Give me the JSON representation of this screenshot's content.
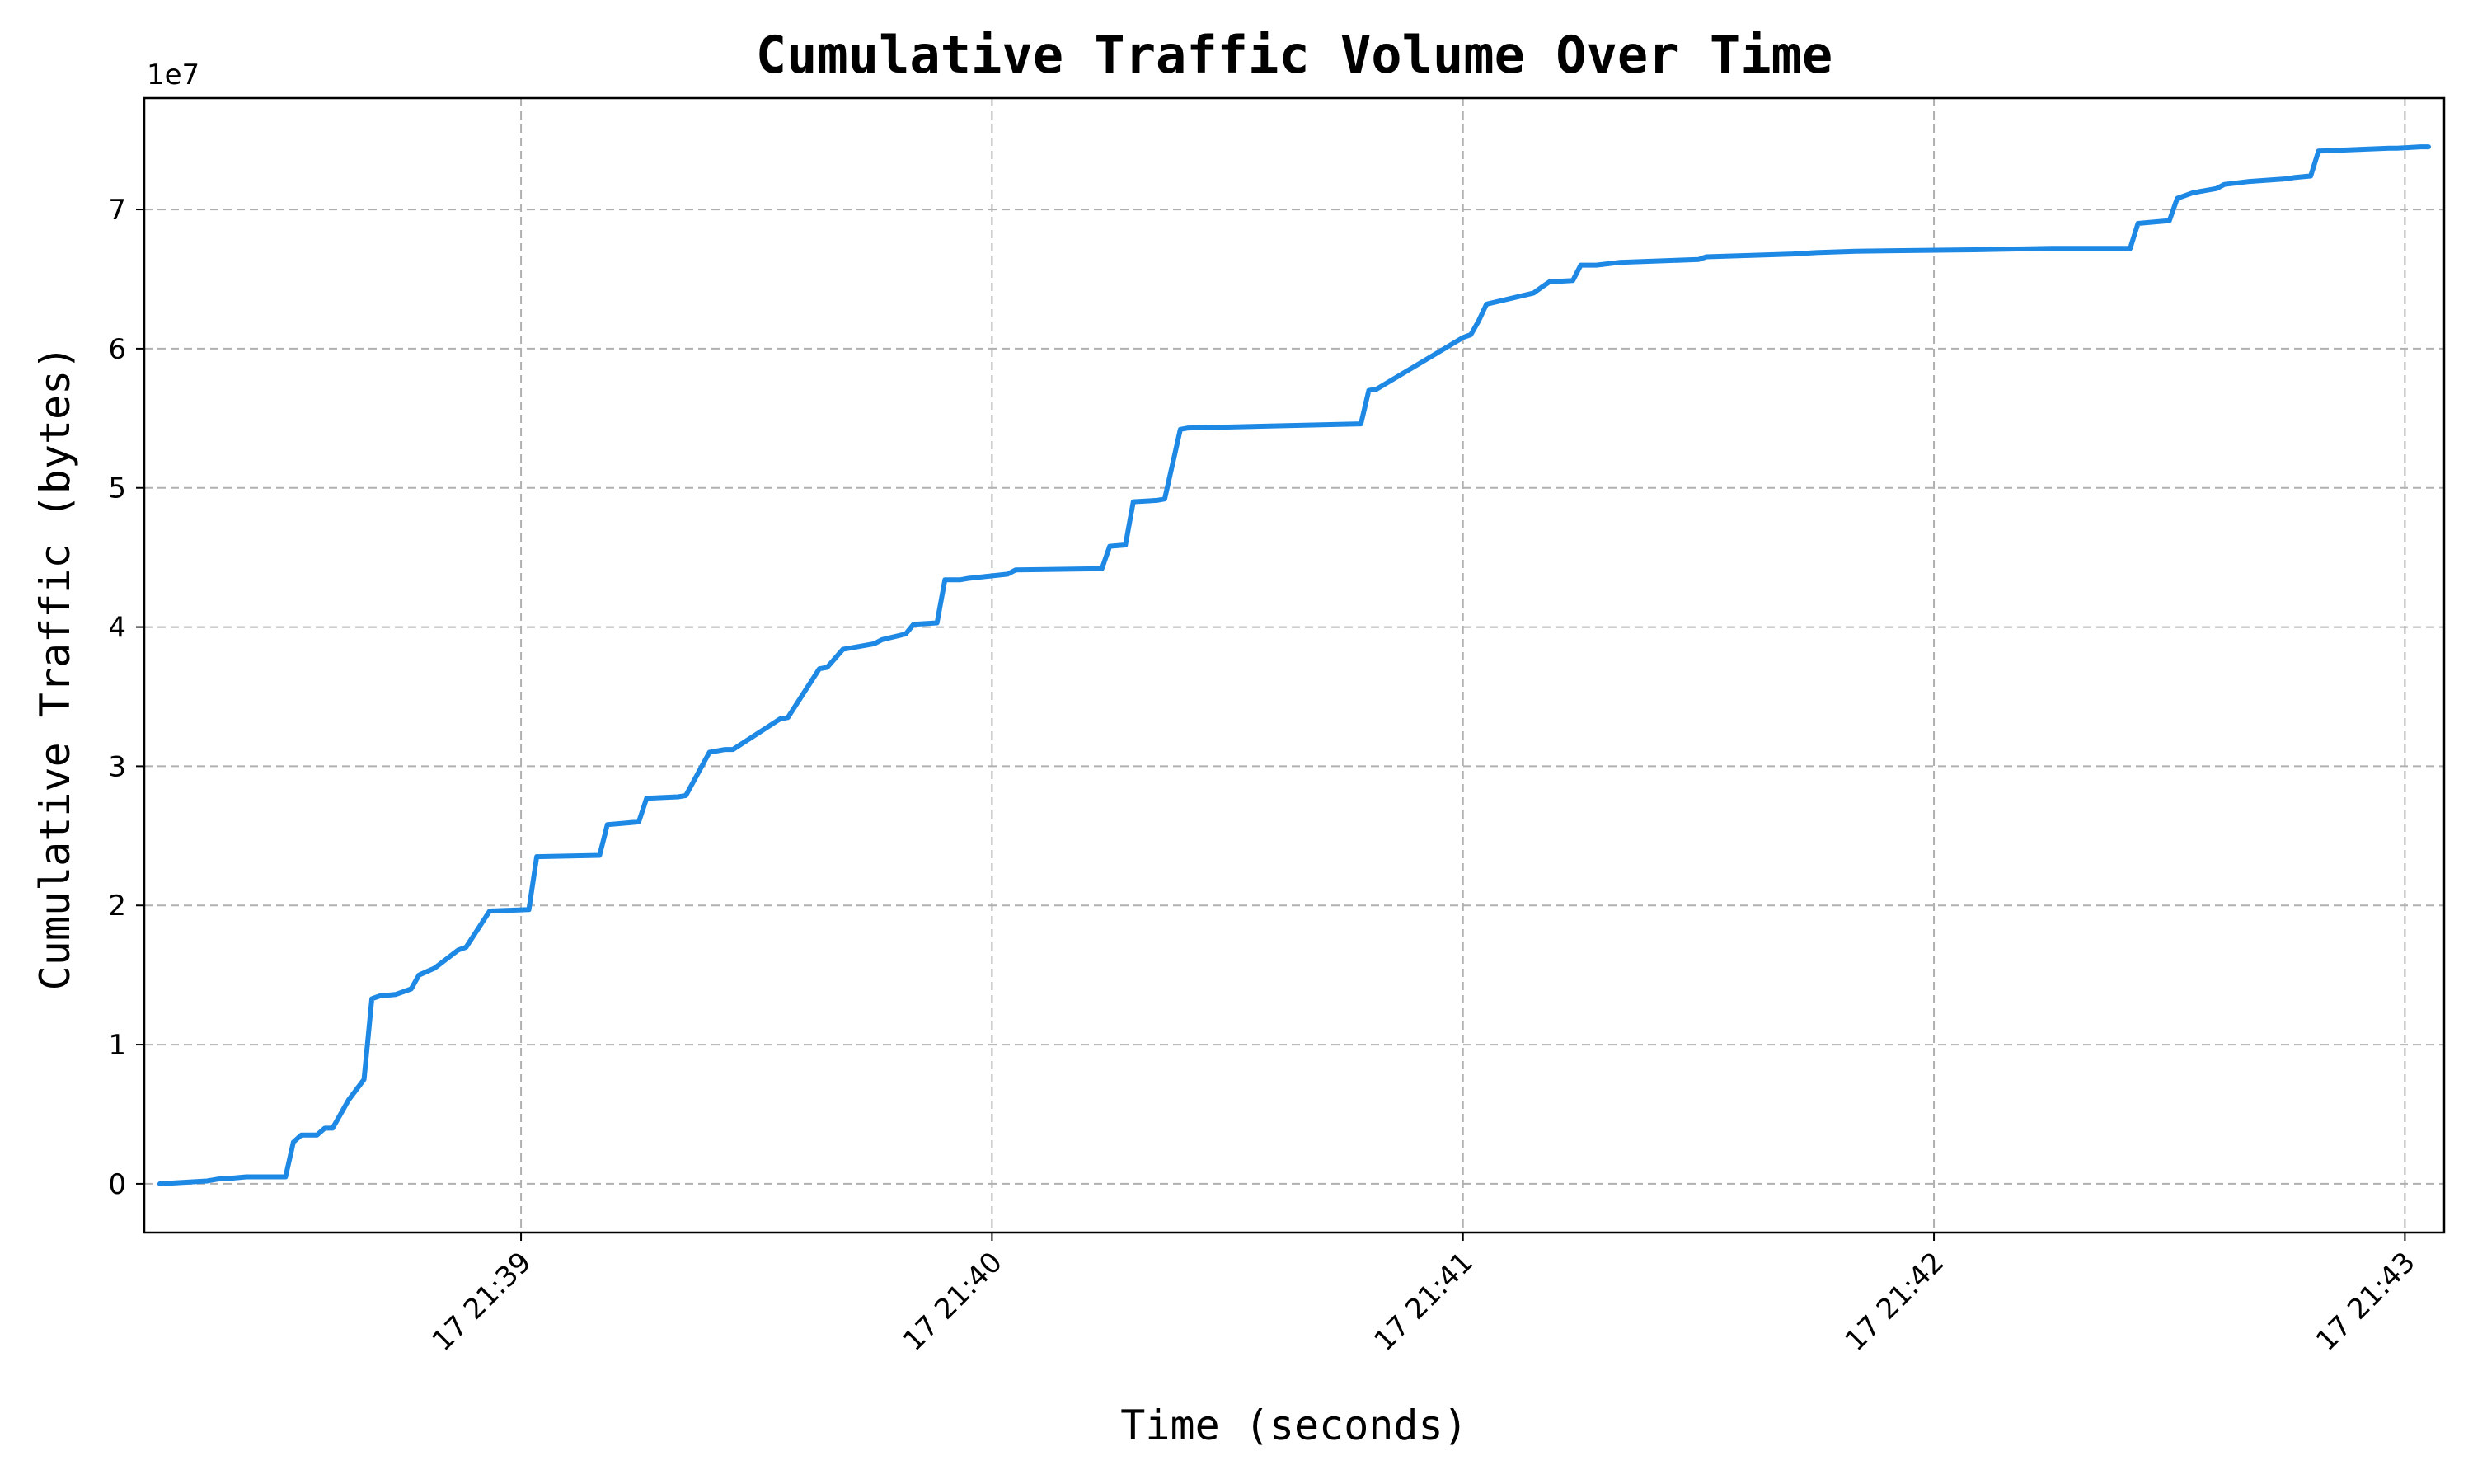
{
  "chart_data": {
    "type": "line",
    "title": "Cumulative Traffic Volume Over Time",
    "xlabel": "Time (seconds)",
    "ylabel": "Cumulative Traffic (bytes)",
    "y_offset_label": "1e7",
    "y_unit_multiplier": 10000000,
    "xlim": [
      "17 21:38:12",
      "17 21:43:05"
    ],
    "ylim": [
      -0.35,
      7.8
    ],
    "x_ticks": [
      "17 21:39",
      "17 21:40",
      "17 21:41",
      "17 21:42",
      "17 21:43"
    ],
    "y_ticks": [
      "0",
      "1",
      "2",
      "3",
      "4",
      "5",
      "6",
      "7"
    ],
    "grid": true,
    "color": "#1e88e5",
    "series": [
      {
        "x": [
          "17 21:38:14",
          "17 21:38:20",
          "17 21:38:22",
          "17 21:38:23",
          "17 21:38:25",
          "17 21:38:26",
          "17 21:38:30",
          "17 21:38:31",
          "17 21:38:32",
          "17 21:38:33",
          "17 21:38:34",
          "17 21:38:35",
          "17 21:38:36",
          "17 21:38:37",
          "17 21:38:38",
          "17 21:38:40",
          "17 21:38:41",
          "17 21:38:42",
          "17 21:38:44",
          "17 21:38:46",
          "17 21:38:47",
          "17 21:38:49",
          "17 21:38:52",
          "17 21:38:53",
          "17 21:38:56",
          "17 21:39:01",
          "17 21:39:02",
          "17 21:39:10",
          "17 21:39:11",
          "17 21:39:15",
          "17 21:39:16",
          "17 21:39:20",
          "17 21:39:21",
          "17 21:39:24",
          "17 21:39:26",
          "17 21:39:27",
          "17 21:39:33",
          "17 21:39:34",
          "17 21:39:38",
          "17 21:39:39",
          "17 21:39:41",
          "17 21:39:42",
          "17 21:39:45",
          "17 21:39:46",
          "17 21:39:49",
          "17 21:39:50",
          "17 21:39:53",
          "17 21:39:54",
          "17 21:39:56",
          "17 21:39:57",
          "17 21:40:02",
          "17 21:40:03",
          "17 21:40:14",
          "17 21:40:15",
          "17 21:40:17",
          "17 21:40:18",
          "17 21:40:21",
          "17 21:40:22",
          "17 21:40:24",
          "17 21:40:25",
          "17 21:40:47",
          "17 21:40:48",
          "17 21:40:49",
          "17 21:41:00",
          "17 21:41:01",
          "17 21:41:02",
          "17 21:41:03",
          "17 21:41:09",
          "17 21:41:10",
          "17 21:41:11",
          "17 21:41:14",
          "17 21:41:15",
          "17 21:41:17",
          "17 21:41:20",
          "17 21:41:25",
          "17 21:41:30",
          "17 21:41:31",
          "17 21:41:42",
          "17 21:41:45",
          "17 21:41:50",
          "17 21:42:05",
          "17 21:42:15",
          "17 21:42:25",
          "17 21:42:26",
          "17 21:42:30",
          "17 21:42:31",
          "17 21:42:32",
          "17 21:42:33",
          "17 21:42:34",
          "17 21:42:36",
          "17 21:42:37",
          "17 21:42:40",
          "17 21:42:45",
          "17 21:42:46",
          "17 21:42:48",
          "17 21:42:49",
          "17 21:42:58",
          "17 21:42:59",
          "17 21:43:02",
          "17 21:43:03"
        ],
        "y": [
          0,
          0.02,
          0.04,
          0.04,
          0.05,
          0.05,
          0.05,
          0.3,
          0.35,
          0.35,
          0.35,
          0.4,
          0.4,
          0.5,
          0.6,
          0.75,
          1.33,
          1.35,
          1.36,
          1.4,
          1.5,
          1.55,
          1.68,
          1.7,
          1.96,
          1.97,
          2.35,
          2.36,
          2.58,
          2.6,
          2.77,
          2.78,
          2.79,
          3.1,
          3.12,
          3.12,
          3.34,
          3.35,
          3.7,
          3.71,
          3.84,
          3.85,
          3.88,
          3.91,
          3.95,
          4.02,
          4.03,
          4.34,
          4.34,
          4.35,
          4.38,
          4.41,
          4.42,
          4.58,
          4.59,
          4.9,
          4.91,
          4.92,
          5.42,
          5.43,
          5.46,
          5.7,
          5.71,
          6.08,
          6.1,
          6.2,
          6.32,
          6.4,
          6.44,
          6.48,
          6.49,
          6.6,
          6.6,
          6.62,
          6.63,
          6.64,
          6.66,
          6.68,
          6.69,
          6.7,
          6.71,
          6.72,
          6.72,
          6.9,
          6.92,
          7.08,
          7.1,
          7.12,
          7.13,
          7.15,
          7.18,
          7.2,
          7.22,
          7.23,
          7.24,
          7.42,
          7.44,
          7.44,
          7.45,
          7.45
        ]
      }
    ]
  }
}
